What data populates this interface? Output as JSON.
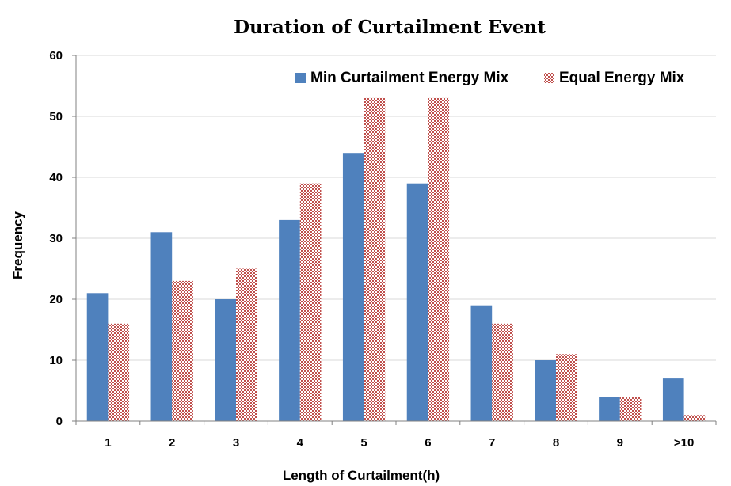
{
  "chart_data": {
    "type": "bar",
    "title": "Duration of Curtailment Event",
    "xlabel": "Length of Curtailment(h)",
    "ylabel": "Frequency",
    "ylim": [
      0,
      60
    ],
    "yticks": [
      0,
      10,
      20,
      30,
      40,
      50,
      60
    ],
    "categories": [
      "1",
      "2",
      "3",
      "4",
      "5",
      "6",
      "7",
      "8",
      "9",
      ">10"
    ],
    "series": [
      {
        "name": "Min Curtailment Energy Mix",
        "values": [
          21,
          31,
          20,
          33,
          44,
          39,
          19,
          10,
          4,
          7
        ],
        "color": "#4f81bd",
        "fill": "solid"
      },
      {
        "name": "Equal Energy Mix",
        "values": [
          16,
          23,
          25,
          39,
          53,
          53,
          16,
          11,
          4,
          1
        ],
        "color": "#c0504d",
        "fill": "checker"
      }
    ],
    "grid": true,
    "legend_position": "top-right"
  }
}
